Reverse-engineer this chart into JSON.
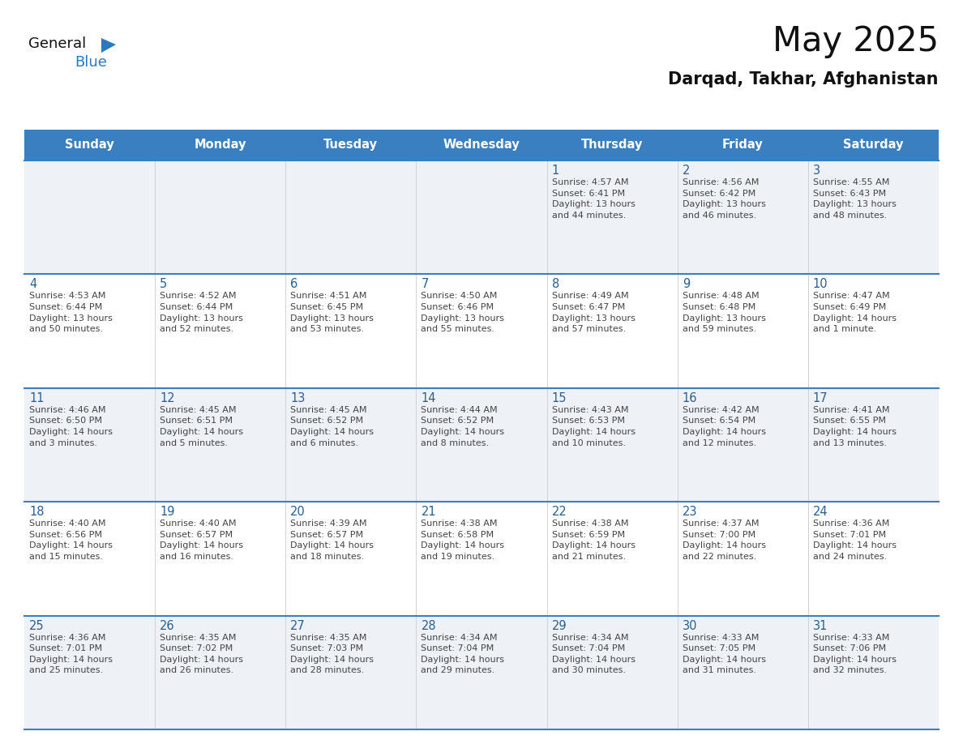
{
  "title": "May 2025",
  "subtitle": "Darqad, Takhar, Afghanistan",
  "header_bg": "#3a7fbf",
  "header_text": "#ffffff",
  "day_headers": [
    "Sunday",
    "Monday",
    "Tuesday",
    "Wednesday",
    "Thursday",
    "Friday",
    "Saturday"
  ],
  "row_bg_light": "#eef2f7",
  "row_bg_white": "#ffffff",
  "separator_color": "#3a7fbf",
  "day_number_color": "#2a5f8f",
  "text_color": "#444444",
  "logo_black": "#111111",
  "logo_blue": "#2a7abf",
  "calendar": [
    [
      {
        "day": "",
        "text": ""
      },
      {
        "day": "",
        "text": ""
      },
      {
        "day": "",
        "text": ""
      },
      {
        "day": "",
        "text": ""
      },
      {
        "day": "1",
        "text": "Sunrise: 4:57 AM\nSunset: 6:41 PM\nDaylight: 13 hours\nand 44 minutes."
      },
      {
        "day": "2",
        "text": "Sunrise: 4:56 AM\nSunset: 6:42 PM\nDaylight: 13 hours\nand 46 minutes."
      },
      {
        "day": "3",
        "text": "Sunrise: 4:55 AM\nSunset: 6:43 PM\nDaylight: 13 hours\nand 48 minutes."
      }
    ],
    [
      {
        "day": "4",
        "text": "Sunrise: 4:53 AM\nSunset: 6:44 PM\nDaylight: 13 hours\nand 50 minutes."
      },
      {
        "day": "5",
        "text": "Sunrise: 4:52 AM\nSunset: 6:44 PM\nDaylight: 13 hours\nand 52 minutes."
      },
      {
        "day": "6",
        "text": "Sunrise: 4:51 AM\nSunset: 6:45 PM\nDaylight: 13 hours\nand 53 minutes."
      },
      {
        "day": "7",
        "text": "Sunrise: 4:50 AM\nSunset: 6:46 PM\nDaylight: 13 hours\nand 55 minutes."
      },
      {
        "day": "8",
        "text": "Sunrise: 4:49 AM\nSunset: 6:47 PM\nDaylight: 13 hours\nand 57 minutes."
      },
      {
        "day": "9",
        "text": "Sunrise: 4:48 AM\nSunset: 6:48 PM\nDaylight: 13 hours\nand 59 minutes."
      },
      {
        "day": "10",
        "text": "Sunrise: 4:47 AM\nSunset: 6:49 PM\nDaylight: 14 hours\nand 1 minute."
      }
    ],
    [
      {
        "day": "11",
        "text": "Sunrise: 4:46 AM\nSunset: 6:50 PM\nDaylight: 14 hours\nand 3 minutes."
      },
      {
        "day": "12",
        "text": "Sunrise: 4:45 AM\nSunset: 6:51 PM\nDaylight: 14 hours\nand 5 minutes."
      },
      {
        "day": "13",
        "text": "Sunrise: 4:45 AM\nSunset: 6:52 PM\nDaylight: 14 hours\nand 6 minutes."
      },
      {
        "day": "14",
        "text": "Sunrise: 4:44 AM\nSunset: 6:52 PM\nDaylight: 14 hours\nand 8 minutes."
      },
      {
        "day": "15",
        "text": "Sunrise: 4:43 AM\nSunset: 6:53 PM\nDaylight: 14 hours\nand 10 minutes."
      },
      {
        "day": "16",
        "text": "Sunrise: 4:42 AM\nSunset: 6:54 PM\nDaylight: 14 hours\nand 12 minutes."
      },
      {
        "day": "17",
        "text": "Sunrise: 4:41 AM\nSunset: 6:55 PM\nDaylight: 14 hours\nand 13 minutes."
      }
    ],
    [
      {
        "day": "18",
        "text": "Sunrise: 4:40 AM\nSunset: 6:56 PM\nDaylight: 14 hours\nand 15 minutes."
      },
      {
        "day": "19",
        "text": "Sunrise: 4:40 AM\nSunset: 6:57 PM\nDaylight: 14 hours\nand 16 minutes."
      },
      {
        "day": "20",
        "text": "Sunrise: 4:39 AM\nSunset: 6:57 PM\nDaylight: 14 hours\nand 18 minutes."
      },
      {
        "day": "21",
        "text": "Sunrise: 4:38 AM\nSunset: 6:58 PM\nDaylight: 14 hours\nand 19 minutes."
      },
      {
        "day": "22",
        "text": "Sunrise: 4:38 AM\nSunset: 6:59 PM\nDaylight: 14 hours\nand 21 minutes."
      },
      {
        "day": "23",
        "text": "Sunrise: 4:37 AM\nSunset: 7:00 PM\nDaylight: 14 hours\nand 22 minutes."
      },
      {
        "day": "24",
        "text": "Sunrise: 4:36 AM\nSunset: 7:01 PM\nDaylight: 14 hours\nand 24 minutes."
      }
    ],
    [
      {
        "day": "25",
        "text": "Sunrise: 4:36 AM\nSunset: 7:01 PM\nDaylight: 14 hours\nand 25 minutes."
      },
      {
        "day": "26",
        "text": "Sunrise: 4:35 AM\nSunset: 7:02 PM\nDaylight: 14 hours\nand 26 minutes."
      },
      {
        "day": "27",
        "text": "Sunrise: 4:35 AM\nSunset: 7:03 PM\nDaylight: 14 hours\nand 28 minutes."
      },
      {
        "day": "28",
        "text": "Sunrise: 4:34 AM\nSunset: 7:04 PM\nDaylight: 14 hours\nand 29 minutes."
      },
      {
        "day": "29",
        "text": "Sunrise: 4:34 AM\nSunset: 7:04 PM\nDaylight: 14 hours\nand 30 minutes."
      },
      {
        "day": "30",
        "text": "Sunrise: 4:33 AM\nSunset: 7:05 PM\nDaylight: 14 hours\nand 31 minutes."
      },
      {
        "day": "31",
        "text": "Sunrise: 4:33 AM\nSunset: 7:06 PM\nDaylight: 14 hours\nand 32 minutes."
      }
    ]
  ]
}
